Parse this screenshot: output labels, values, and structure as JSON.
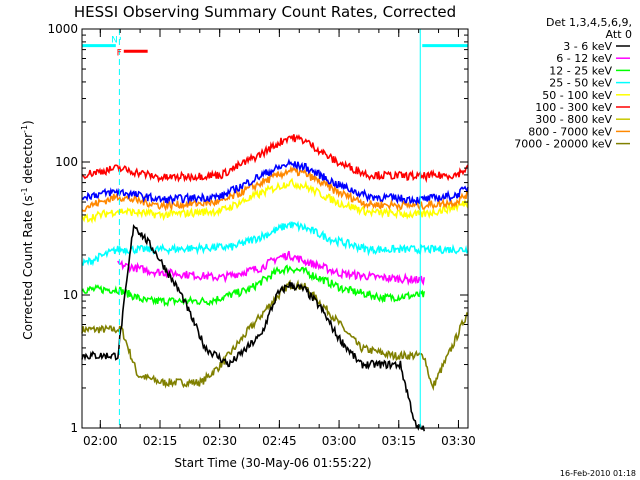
{
  "chart_data": {
    "type": "line",
    "title": "HESSI Observing Summary Count Rates, Corrected",
    "xlabel": "Start Time (30-May-06 01:55:22)",
    "ylabel_parts": [
      "Corrected Count Rate (s",
      "-1",
      " detector",
      "-1",
      ")"
    ],
    "yscale": "log",
    "ylim": [
      1,
      1000
    ],
    "y_ticks": [
      {
        "value": 1,
        "label": "1"
      },
      {
        "value": 10,
        "label": "10"
      },
      {
        "value": 100,
        "label": "100"
      },
      {
        "value": 1000,
        "label": "1000"
      }
    ],
    "x_range_min": [
      0,
      97
    ],
    "x_ticks": [
      {
        "value": 4.6,
        "label": "02:00"
      },
      {
        "value": 19.6,
        "label": "02:15"
      },
      {
        "value": 34.6,
        "label": "02:30"
      },
      {
        "value": 49.6,
        "label": "02:45"
      },
      {
        "value": 64.6,
        "label": "03:00"
      },
      {
        "value": 79.6,
        "label": "03:15"
      },
      {
        "value": 94.6,
        "label": "03:30"
      }
    ],
    "legend_title": [
      "Det 1,3,4,5,6,9,",
      "Att 0"
    ],
    "legend_position": "right",
    "series": [
      {
        "name": "3 - 6 keV",
        "color": "#000000",
        "x": [
          0,
          9,
          13,
          18,
          25,
          31,
          37,
          45,
          49,
          52,
          56,
          60,
          64,
          70,
          76,
          80,
          84,
          86
        ],
        "y": [
          3.5,
          3.5,
          34,
          22,
          10,
          4,
          3,
          5,
          10,
          12,
          11,
          8,
          5,
          3,
          3,
          3,
          1,
          1
        ]
      },
      {
        "name": "6 - 12 keV",
        "color": "#ff00ff",
        "x": [
          9,
          18,
          35,
          45,
          49,
          52,
          56,
          65,
          75,
          85,
          86
        ],
        "y": [
          17,
          15,
          13.5,
          16,
          19,
          20,
          18,
          14.5,
          13.5,
          13,
          13
        ]
      },
      {
        "name": "12 - 25 keV",
        "color": "#00ff00",
        "x": [
          0,
          9,
          16,
          32,
          42,
          49,
          52,
          56,
          66,
          76,
          85,
          86
        ],
        "y": [
          11,
          11,
          9,
          9,
          11,
          15,
          16,
          15,
          11,
          9.5,
          10,
          10
        ]
      },
      {
        "name": "25 - 50 keV",
        "color": "#00ffff",
        "x": [
          0,
          9,
          20,
          38,
          47,
          52,
          56,
          63,
          72,
          85,
          97
        ],
        "y": [
          17,
          22,
          22,
          23,
          29,
          34,
          32,
          26,
          22,
          22,
          22
        ]
      },
      {
        "name": "50 - 100 keV",
        "color": "#ffff00",
        "x": [
          0,
          9,
          20,
          35,
          46,
          52,
          56,
          64,
          72,
          85,
          94,
          97
        ],
        "y": [
          37,
          43,
          40,
          43,
          60,
          70,
          66,
          50,
          42,
          40,
          46,
          50
        ]
      },
      {
        "name": "100 - 300 keV",
        "color": "#ff0000",
        "x": [
          0,
          9,
          20,
          35,
          45,
          52,
          56,
          64,
          72,
          85,
          94,
          97
        ],
        "y": [
          80,
          90,
          76,
          80,
          115,
          155,
          145,
          100,
          80,
          78,
          80,
          90
        ]
      },
      {
        "name": "300 - 800 keV",
        "color": "#c8c800",
        "x": [],
        "y": []
      },
      {
        "name": "800 - 7000 keV",
        "color": "#ff8800",
        "x": [
          0,
          9,
          20,
          35,
          46,
          52,
          56,
          64,
          72,
          85,
          94,
          97
        ],
        "y": [
          45,
          55,
          47,
          50,
          72,
          86,
          82,
          60,
          48,
          47,
          50,
          58
        ]
      },
      {
        "name": "7000 - 20000 keV",
        "color": "#808000",
        "x": [
          0,
          10,
          14,
          20,
          30,
          35,
          42,
          48,
          52,
          56,
          62,
          70,
          78,
          86,
          88,
          92,
          97
        ],
        "y": [
          5.5,
          5.5,
          2.5,
          2.2,
          2.2,
          3,
          5.5,
          9,
          12,
          11.5,
          7.5,
          4,
          3.5,
          3.5,
          2,
          3.5,
          7.5
        ]
      },
      {
        "name": "",
        "color": "#0000ff",
        "x": [
          0,
          9,
          20,
          35,
          46,
          52,
          56,
          64,
          72,
          85,
          94,
          97
        ],
        "y": [
          55,
          60,
          52,
          55,
          82,
          97,
          92,
          68,
          55,
          52,
          56,
          65
        ]
      }
    ],
    "vertical_lines_min": [
      9.4,
      85,
      97
    ],
    "flag_bars": [
      {
        "label": "",
        "color": "#00ffff",
        "x": [
          0,
          8.5
        ],
        "y": 750
      },
      {
        "label": "N",
        "color": "#00ffff",
        "x": [
          9.5,
          9.5
        ],
        "y": 850
      },
      {
        "label": "",
        "color": "#00ffff",
        "x": [
          85.5,
          97
        ],
        "y": 750
      },
      {
        "label": "F",
        "color": "#ff0000",
        "x": [
          10.5,
          16.5
        ],
        "y": 680
      }
    ]
  },
  "footer": "16-Feb-2010 01:18"
}
